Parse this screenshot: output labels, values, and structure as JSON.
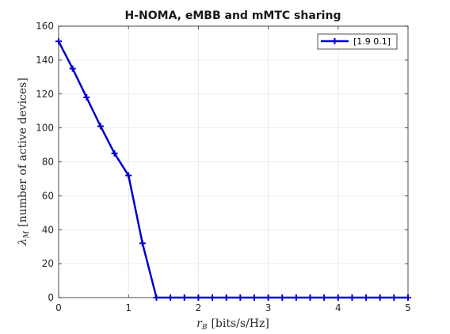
{
  "chart_data": {
    "type": "line",
    "title": "H-NOMA, eMBB and mMTC sharing",
    "xlabel_main": "r",
    "xlabel_sub": "B",
    "xlabel_unit": "[bits/s/Hz]",
    "ylabel_main": "λ",
    "ylabel_sub": "M",
    "ylabel_unit": "[number of active devices]",
    "xlim": [
      0,
      5
    ],
    "ylim": [
      0,
      160
    ],
    "xticks": [
      0,
      1,
      2,
      3,
      4,
      5
    ],
    "yticks": [
      0,
      20,
      40,
      60,
      80,
      100,
      120,
      140,
      160
    ],
    "grid": true,
    "legend_position": "top-right",
    "series": [
      {
        "name": "[1.9 0.1]",
        "color": "#0000cc",
        "marker": "plus",
        "x": [
          0,
          0.2,
          0.4,
          0.6,
          0.8,
          1.0,
          1.2,
          1.4,
          1.6,
          1.8,
          2.0,
          2.2,
          2.4,
          2.6,
          2.8,
          3.0,
          3.2,
          3.4,
          3.6,
          3.8,
          4.0,
          4.2,
          4.4,
          4.6,
          4.8,
          5.0
        ],
        "y": [
          151,
          135,
          118,
          101,
          85,
          72,
          32,
          0,
          0,
          0,
          0,
          0,
          0,
          0,
          0,
          0,
          0,
          0,
          0,
          0,
          0,
          0,
          0,
          0,
          0,
          0
        ]
      }
    ]
  }
}
